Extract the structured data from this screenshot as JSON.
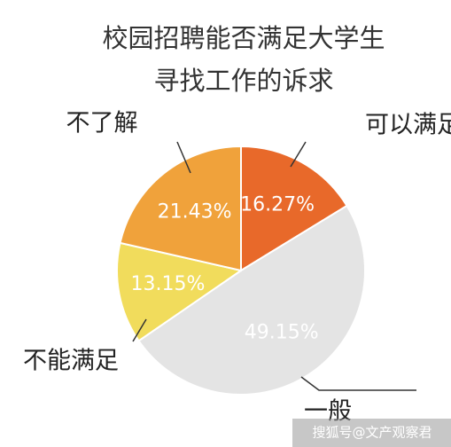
{
  "chart_data": {
    "type": "pie",
    "title": [
      "校园招聘能否满足大学生",
      "寻找工作的诉求"
    ],
    "categories": [
      "可以满足",
      "一般",
      "不能满足",
      "不了解"
    ],
    "values": [
      16.27,
      49.15,
      13.15,
      21.43
    ],
    "value_labels": [
      "16.27%",
      "49.15%",
      "13.15%",
      "21.43%"
    ],
    "colors": [
      "#e8692a",
      "#e4e4e4",
      "#f1dc5c",
      "#f0a23b"
    ],
    "watermark": "搜狐号@文产观察君"
  }
}
